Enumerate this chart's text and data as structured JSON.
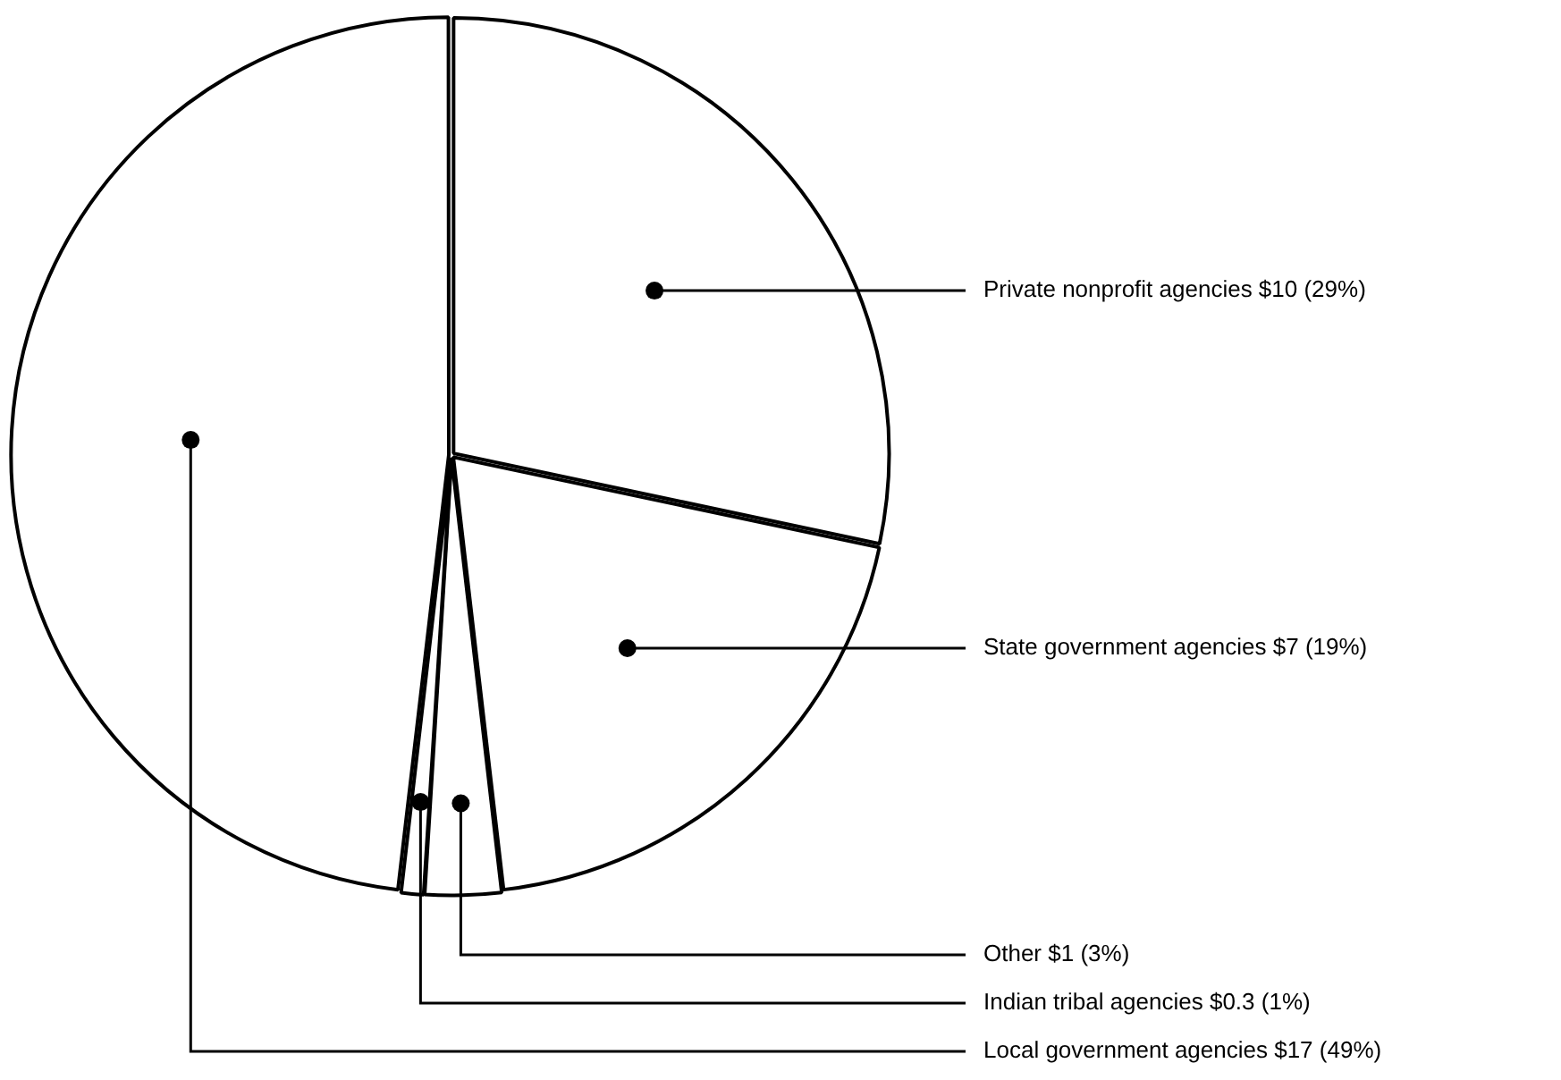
{
  "chart_data": {
    "type": "pie",
    "categories": [
      "Private nonprofit agencies",
      "State government agencies",
      "Other",
      "Indian tribal agencies",
      "Local government agencies"
    ],
    "values": [
      10,
      7,
      1,
      0.3,
      17
    ],
    "value_labels": [
      "$10 (29%)",
      "$7 (19%)",
      "$1 (3%)",
      "$0.3 (1%)",
      "$17 (49%)"
    ],
    "colors": [
      "#ffffff",
      "#ffffff",
      "#ffffff",
      "#ffffff",
      "#ffffff"
    ],
    "legend": false
  }
}
